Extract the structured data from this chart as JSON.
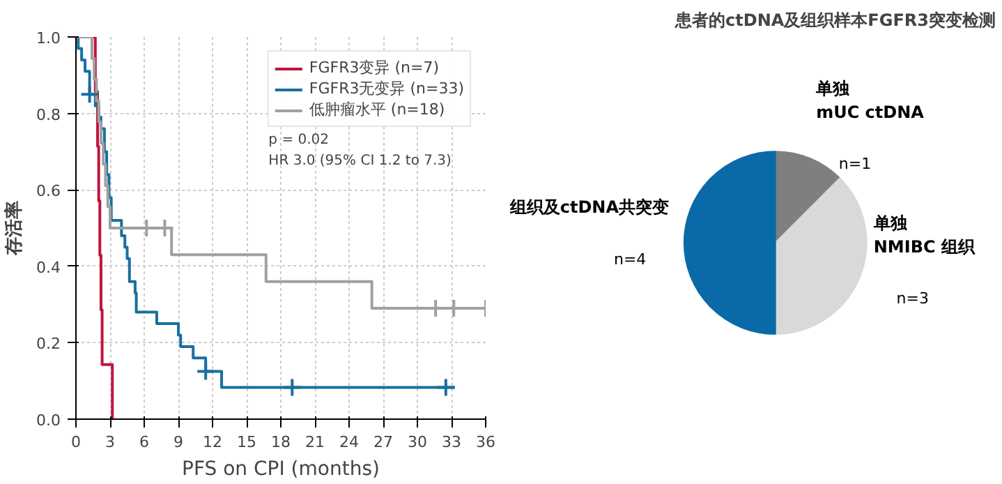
{
  "chart_data": [
    {
      "type": "step",
      "xlabel": "PFS on CPI (months)",
      "ylabel": "存活率",
      "xlim": [
        0,
        36
      ],
      "ylim": [
        0,
        1
      ],
      "xticks": [
        0,
        3,
        6,
        9,
        12,
        15,
        18,
        21,
        24,
        27,
        30,
        33,
        36
      ],
      "yticks": [
        {
          "value": 0,
          "label": "0.0"
        },
        0.2,
        0.4,
        0.6,
        0.8,
        {
          "value": 1,
          "label": "1.0"
        }
      ],
      "grid": true,
      "legend": "top right",
      "annotations": [
        "p = 0.02",
        "HR 3.0 (95% CI 1.2 to 7.3)"
      ],
      "series": [
        {
          "name": "FGFR3变异 (n=7)",
          "color": "#c0143c",
          "x": [
            0,
            1.7,
            1.9,
            2.0,
            2.1,
            2.2,
            2.3,
            3.2
          ],
          "values": [
            1,
            0.857,
            0.714,
            0.571,
            0.429,
            0.286,
            0.143,
            0
          ]
        },
        {
          "name": "FGFR3无变异 (n=33)",
          "color": "#1a6fa0",
          "x": [
            0,
            0.2,
            0.5,
            0.8,
            1.2,
            1.7,
            2.0,
            2.2,
            2.5,
            2.7,
            2.9,
            3.1,
            4.0,
            4.3,
            4.5,
            4.7,
            5.2,
            5.3,
            7.1,
            9.0,
            9.2,
            10.3,
            11.4,
            12.8,
            33.3
          ],
          "values": [
            1,
            0.97,
            0.94,
            0.91,
            0.85,
            0.82,
            0.79,
            0.76,
            0.7,
            0.64,
            0.58,
            0.52,
            0.48,
            0.45,
            0.42,
            0.36,
            0.33,
            0.28,
            0.25,
            0.22,
            0.19,
            0.16,
            0.125,
            0.083,
            0.083
          ]
        },
        {
          "name": "低肿瘤水平 (n=18)",
          "color": "#a0a0a0",
          "x": [
            0,
            1.4,
            1.6,
            1.8,
            2.0,
            2.2,
            2.4,
            2.6,
            2.8,
            3.0,
            8.4,
            16.7,
            26.0,
            36
          ],
          "values": [
            1,
            0.944,
            0.889,
            0.833,
            0.778,
            0.722,
            0.667,
            0.611,
            0.556,
            0.5,
            0.43,
            0.36,
            0.29,
            0.29
          ]
        },
        {
          "type": "scatter",
          "marker": "cross",
          "color": "#1a6fa0",
          "x": [
            1.2,
            11.4,
            19,
            32.5
          ],
          "values": [
            0.85,
            0.125,
            0.083,
            0.083
          ]
        },
        {
          "type": "scatter",
          "marker": "cross",
          "color": "#a0a0a0",
          "x": [
            6.2,
            7.8,
            31.6,
            33.2,
            36
          ],
          "values": [
            0.5,
            0.5,
            0.29,
            0.29,
            0.29
          ]
        }
      ]
    },
    {
      "type": "pie",
      "title": "患者的ctDNA及组织样本FGFR3突变检测",
      "categories": [
        "单独\nmUC ctDNA",
        "单独\nNMIBC 组织",
        "组织及ctDNA共突变"
      ],
      "values": [
        1,
        3,
        4
      ],
      "colors": [
        "#7f7f7f",
        "#d9d9d9",
        "#0a6aa8"
      ],
      "value_labels": [
        "n=1",
        "n=3",
        "n=4"
      ]
    }
  ]
}
